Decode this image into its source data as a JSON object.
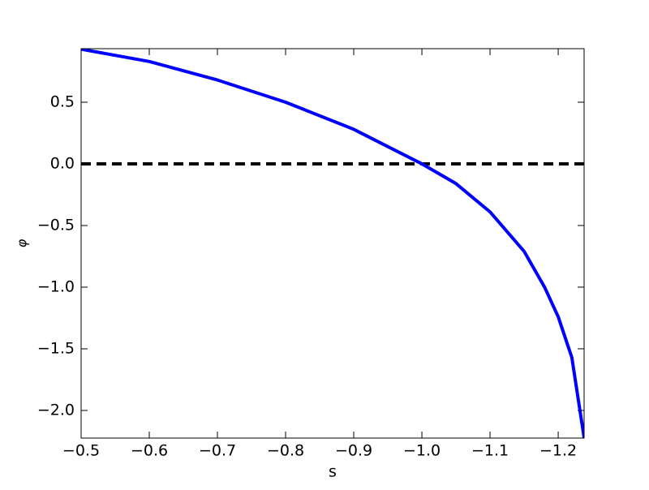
{
  "chart_data": {
    "type": "line",
    "xlabel": "s",
    "ylabel": "φ",
    "x": [
      -0.5,
      -0.6,
      -0.7,
      -0.8,
      -0.9,
      -1.0,
      -1.05,
      -1.1,
      -1.15,
      -1.18,
      -1.2,
      -1.22,
      -1.238
    ],
    "series": [
      {
        "color": "#0000ff",
        "values": [
          0.93,
          0.83,
          0.68,
          0.5,
          0.28,
          0.0,
          -0.16,
          -0.39,
          -0.71,
          -1.0,
          -1.24,
          -1.57,
          -2.22
        ]
      }
    ],
    "reference_line": {
      "y": 0,
      "color": "#000000",
      "style": "dashed"
    },
    "xlim": [
      -0.5,
      -1.238
    ],
    "ylim": [
      -2.224,
      0.934
    ],
    "xticks": [
      {
        "value": -0.5,
        "label": "−0.5"
      },
      {
        "value": -0.6,
        "label": "−0.6"
      },
      {
        "value": -0.7,
        "label": "−0.7"
      },
      {
        "value": -0.8,
        "label": "−0.8"
      },
      {
        "value": -0.9,
        "label": "−0.9"
      },
      {
        "value": -1.0,
        "label": "−1.0"
      },
      {
        "value": -1.1,
        "label": "−1.1"
      },
      {
        "value": -1.2,
        "label": "−1.2"
      }
    ],
    "yticks": [
      {
        "value": -2.0,
        "label": "−2.0"
      },
      {
        "value": -1.5,
        "label": "−1.5"
      },
      {
        "value": -1.0,
        "label": "−1.0"
      },
      {
        "value": -0.5,
        "label": "−0.5"
      },
      {
        "value": 0,
        "label": "0.0"
      },
      0.5
    ],
    "grid": false
  }
}
